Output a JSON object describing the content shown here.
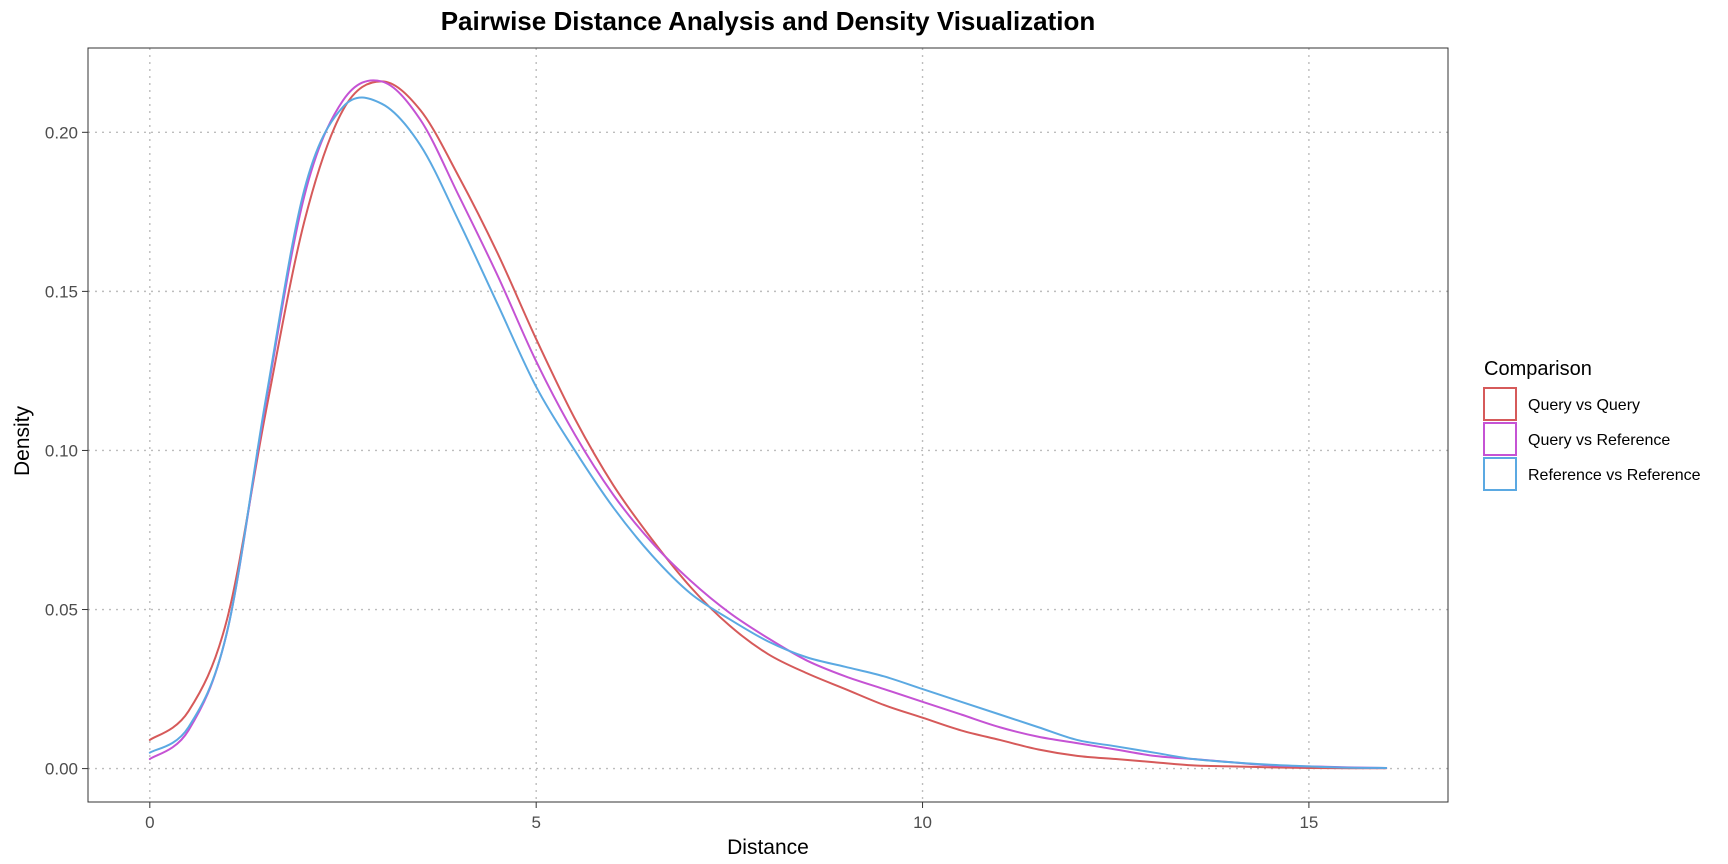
{
  "chart_data": {
    "type": "line",
    "title": "Pairwise Distance Analysis and Density Visualization",
    "xlabel": "Distance",
    "ylabel": "Density",
    "xlim": [
      -0.8,
      16.8
    ],
    "ylim": [
      -0.0105,
      0.2265
    ],
    "x_ticks": [
      0,
      5,
      10,
      15
    ],
    "x_tick_labels": [
      "0",
      "5",
      "10",
      "15"
    ],
    "y_ticks": [
      0,
      0.05,
      0.1,
      0.15,
      0.2
    ],
    "y_tick_labels": [
      "0.00",
      "0.05",
      "0.10",
      "0.15",
      "0.20"
    ],
    "grid": true,
    "grid_style": "dotted",
    "legend": {
      "title": "Comparison",
      "placement": "right"
    },
    "series": [
      {
        "name": "Query vs Query",
        "color": "#d65a5a",
        "x": [
          0,
          0.5,
          1,
          1.5,
          2,
          2.5,
          3,
          3.5,
          4,
          4.5,
          5,
          5.5,
          6,
          6.5,
          7,
          7.5,
          8,
          8.5,
          9,
          9.5,
          10,
          10.5,
          11,
          11.5,
          12,
          12.5,
          13,
          13.5,
          14,
          14.5,
          15,
          15.5,
          16
        ],
        "y": [
          0.009,
          0.018,
          0.047,
          0.112,
          0.172,
          0.207,
          0.216,
          0.207,
          0.186,
          0.162,
          0.135,
          0.11,
          0.089,
          0.072,
          0.057,
          0.045,
          0.036,
          0.03,
          0.025,
          0.02,
          0.016,
          0.012,
          0.009,
          0.006,
          0.004,
          0.003,
          0.002,
          0.001,
          0.0007,
          0.0004,
          0.0002,
          0.0001,
          0.0001
        ]
      },
      {
        "name": "Query vs Reference",
        "color": "#c553d4",
        "x": [
          0,
          0.5,
          1,
          1.5,
          2,
          2.5,
          3,
          3.5,
          4,
          4.5,
          5,
          5.5,
          6,
          6.5,
          7,
          7.5,
          8,
          8.5,
          9,
          9.5,
          10,
          10.5,
          11,
          11.5,
          12,
          12.5,
          13,
          13.5,
          14,
          14.5,
          15,
          15.5,
          16
        ],
        "y": [
          0.003,
          0.012,
          0.043,
          0.115,
          0.18,
          0.21,
          0.216,
          0.204,
          0.18,
          0.155,
          0.128,
          0.105,
          0.086,
          0.071,
          0.059,
          0.049,
          0.041,
          0.034,
          0.029,
          0.025,
          0.021,
          0.017,
          0.013,
          0.01,
          0.008,
          0.006,
          0.004,
          0.003,
          0.002,
          0.001,
          0.0007,
          0.0004,
          0.0002
        ]
      },
      {
        "name": "Reference vs Reference",
        "color": "#5ba9e2",
        "x": [
          0,
          0.5,
          1,
          1.5,
          2,
          2.5,
          3,
          3.5,
          4,
          4.5,
          5,
          5.5,
          6,
          6.5,
          7,
          7.5,
          8,
          8.5,
          9,
          9.5,
          10,
          10.5,
          11,
          11.5,
          12,
          12.5,
          13,
          13.5,
          14,
          14.5,
          15,
          15.5,
          16
        ],
        "y": [
          0.005,
          0.013,
          0.043,
          0.116,
          0.182,
          0.208,
          0.209,
          0.196,
          0.172,
          0.146,
          0.12,
          0.1,
          0.082,
          0.067,
          0.055,
          0.047,
          0.04,
          0.035,
          0.032,
          0.029,
          0.025,
          0.021,
          0.017,
          0.013,
          0.009,
          0.007,
          0.005,
          0.003,
          0.002,
          0.0012,
          0.0007,
          0.0003,
          0.0002
        ]
      }
    ]
  }
}
